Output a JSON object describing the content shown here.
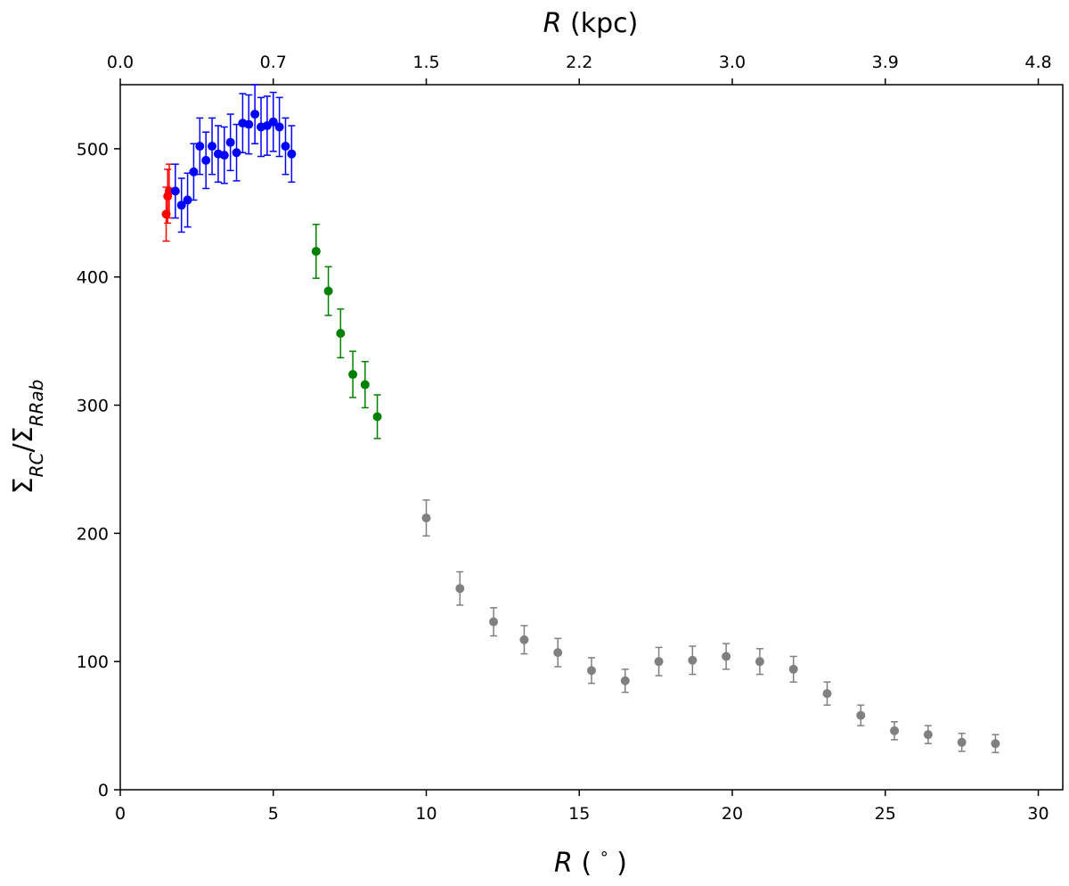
{
  "chart_data": {
    "type": "scatter",
    "title": "",
    "xlabel": "R (°)",
    "xlabel_parts": {
      "var": "R",
      "unit_open": " ( ",
      "unit": "°",
      "unit_close": " )"
    },
    "top_xlabel": "R (kpc)",
    "top_xlabel_parts": {
      "var": "R",
      "unit": " (kpc)"
    },
    "ylabel": "Σ_RC/Σ_RRab",
    "ylabel_parts": {
      "sigma": "Σ",
      "sub1": "RC",
      "slash": "/",
      "sub2": "RRab"
    },
    "xlim": [
      0,
      30.8
    ],
    "ylim": [
      0,
      550
    ],
    "x_ticks": [
      0,
      5,
      10,
      15,
      20,
      25,
      30
    ],
    "x_tick_labels": [
      "0",
      "5",
      "10",
      "15",
      "20",
      "25",
      "30"
    ],
    "y_ticks": [
      0,
      100,
      200,
      300,
      400,
      500
    ],
    "y_tick_labels": [
      "0",
      "100",
      "200",
      "300",
      "400",
      "500"
    ],
    "top_ticks": [
      0,
      5,
      10,
      15,
      20,
      25,
      30
    ],
    "top_tick_labels": [
      "0.0",
      "0.7",
      "1.5",
      "2.2",
      "3.0",
      "3.9",
      "4.8"
    ],
    "grid": false,
    "series": [
      {
        "name": "red",
        "color": "#ff0000",
        "points": [
          {
            "x": 1.5,
            "y": 449,
            "err": 21
          },
          {
            "x": 1.55,
            "y": 463,
            "err": 21
          },
          {
            "x": 1.6,
            "y": 467,
            "err": 21
          }
        ]
      },
      {
        "name": "blue",
        "color": "#0000ff",
        "points": [
          {
            "x": 1.8,
            "y": 467,
            "err": 21
          },
          {
            "x": 2.0,
            "y": 456,
            "err": 21
          },
          {
            "x": 2.2,
            "y": 460,
            "err": 21
          },
          {
            "x": 2.4,
            "y": 482,
            "err": 22
          },
          {
            "x": 2.6,
            "y": 502,
            "err": 22
          },
          {
            "x": 2.8,
            "y": 491,
            "err": 22
          },
          {
            "x": 3.0,
            "y": 502,
            "err": 22
          },
          {
            "x": 3.2,
            "y": 496,
            "err": 22
          },
          {
            "x": 3.4,
            "y": 495,
            "err": 22
          },
          {
            "x": 3.6,
            "y": 505,
            "err": 22
          },
          {
            "x": 3.8,
            "y": 497,
            "err": 22
          },
          {
            "x": 4.0,
            "y": 520,
            "err": 23
          },
          {
            "x": 4.2,
            "y": 519,
            "err": 23
          },
          {
            "x": 4.4,
            "y": 527,
            "err": 23
          },
          {
            "x": 4.6,
            "y": 517,
            "err": 23
          },
          {
            "x": 4.8,
            "y": 518,
            "err": 23
          },
          {
            "x": 5.0,
            "y": 521,
            "err": 23
          },
          {
            "x": 5.2,
            "y": 517,
            "err": 23
          },
          {
            "x": 5.4,
            "y": 502,
            "err": 22
          },
          {
            "x": 5.6,
            "y": 496,
            "err": 22
          }
        ]
      },
      {
        "name": "green",
        "color": "#008000",
        "points": [
          {
            "x": 6.4,
            "y": 420,
            "err": 21
          },
          {
            "x": 6.8,
            "y": 389,
            "err": 19
          },
          {
            "x": 7.2,
            "y": 356,
            "err": 19
          },
          {
            "x": 7.6,
            "y": 324,
            "err": 18
          },
          {
            "x": 8.0,
            "y": 316,
            "err": 18
          },
          {
            "x": 8.4,
            "y": 291,
            "err": 17
          }
        ]
      },
      {
        "name": "grey",
        "color": "#808080",
        "points": [
          {
            "x": 10.0,
            "y": 212,
            "err": 14
          },
          {
            "x": 11.1,
            "y": 157,
            "err": 13
          },
          {
            "x": 12.2,
            "y": 131,
            "err": 11
          },
          {
            "x": 13.2,
            "y": 117,
            "err": 11
          },
          {
            "x": 14.3,
            "y": 107,
            "err": 11
          },
          {
            "x": 15.4,
            "y": 93,
            "err": 10
          },
          {
            "x": 16.5,
            "y": 85,
            "err": 9
          },
          {
            "x": 17.6,
            "y": 100,
            "err": 11
          },
          {
            "x": 18.7,
            "y": 101,
            "err": 11
          },
          {
            "x": 19.8,
            "y": 104,
            "err": 10
          },
          {
            "x": 20.9,
            "y": 100,
            "err": 10
          },
          {
            "x": 22.0,
            "y": 94,
            "err": 10
          },
          {
            "x": 23.1,
            "y": 75,
            "err": 9
          },
          {
            "x": 24.2,
            "y": 58,
            "err": 8
          },
          {
            "x": 25.3,
            "y": 46,
            "err": 7
          },
          {
            "x": 26.4,
            "y": 43,
            "err": 7
          },
          {
            "x": 27.5,
            "y": 37,
            "err": 7
          },
          {
            "x": 28.6,
            "y": 36,
            "err": 7
          }
        ]
      }
    ]
  }
}
